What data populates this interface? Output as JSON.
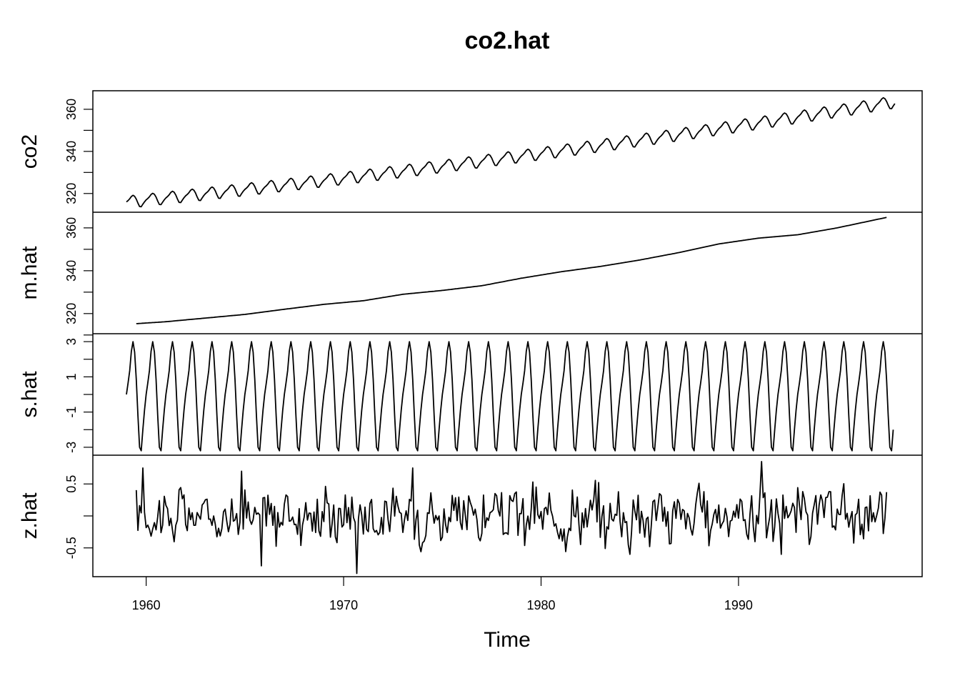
{
  "chart_data": {
    "type": "line",
    "title": "co2.hat",
    "xlabel": "Time",
    "xlim": [
      1957.3,
      1999.3
    ],
    "x_ticks": [
      1960,
      1970,
      1980,
      1990
    ],
    "x_tick_labels": [
      "1960",
      "1970",
      "1980",
      "1990"
    ],
    "grid": false,
    "legend": "none",
    "line_color": "#000000",
    "panels": [
      {
        "name": "co2",
        "ylabel": "co2",
        "ylim": [
          311.1,
          368.8
        ],
        "y_labeled_ticks": [
          320,
          340,
          360
        ],
        "y_tick_labels": [
          "320",
          "340",
          "360"
        ],
        "y_minor_ticks": [
          330,
          350
        ],
        "start": 1959.0,
        "trend": {
          "start": 316.0,
          "end": 363.5
        },
        "seasonal_amplitude": 3.0
      },
      {
        "name": "m.hat",
        "ylabel": "m.hat",
        "ylim": [
          310.6,
          367.3
        ],
        "y_labeled_ticks": [
          320,
          340,
          360
        ],
        "y_tick_labels": [
          "320",
          "340",
          "360"
        ],
        "y_minor_ticks": [
          310,
          330,
          350
        ],
        "start": 1959.5,
        "end": 1997.5,
        "points": [
          [
            1959.5,
            315.3
          ],
          [
            1961,
            316.2
          ],
          [
            1963,
            317.9
          ],
          [
            1965,
            319.6
          ],
          [
            1967,
            322.0
          ],
          [
            1969,
            324.3
          ],
          [
            1971,
            326.0
          ],
          [
            1973,
            329.0
          ],
          [
            1975,
            330.8
          ],
          [
            1977,
            333.0
          ],
          [
            1979,
            336.5
          ],
          [
            1981,
            339.5
          ],
          [
            1983,
            342.0
          ],
          [
            1985,
            345.0
          ],
          [
            1987,
            348.5
          ],
          [
            1989,
            352.5
          ],
          [
            1991,
            355.2
          ],
          [
            1993,
            356.8
          ],
          [
            1995,
            360.0
          ],
          [
            1997.5,
            364.9
          ]
        ]
      },
      {
        "name": "s.hat",
        "ylabel": "s.hat",
        "ylim": [
          -3.45,
          3.45
        ],
        "y_labeled_ticks": [
          -3,
          -1,
          1,
          3
        ],
        "y_tick_labels": [
          "-3",
          "-1",
          "1",
          "3"
        ],
        "y_minor_ticks": [
          -2,
          0,
          2
        ],
        "start": 1959.0,
        "end": 1997.9,
        "seasonal_pattern": [
          0.0,
          0.65,
          1.35,
          2.45,
          3.0,
          2.4,
          0.85,
          -1.2,
          -3.0,
          -3.2,
          -2.0,
          -0.9
        ]
      },
      {
        "name": "z.hat",
        "ylabel": "z.hat",
        "ylim": [
          -0.95,
          0.95
        ],
        "y_labeled_ticks": [
          -0.5,
          0.5
        ],
        "y_tick_labels": [
          "-0.5",
          "0.5"
        ],
        "y_minor_ticks": [
          0.0
        ],
        "start": 1959.5,
        "end": 1997.5,
        "range": [
          -0.9,
          0.85
        ]
      }
    ]
  }
}
